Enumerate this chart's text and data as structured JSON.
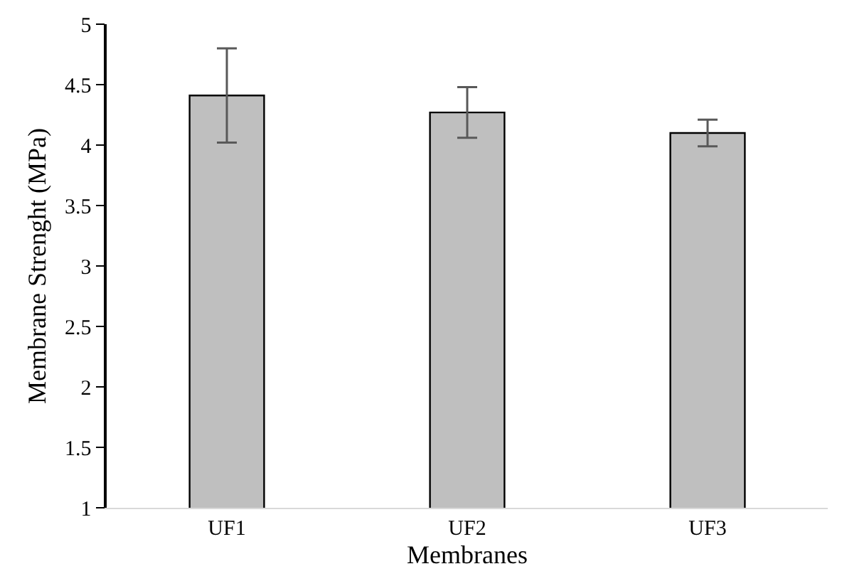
{
  "chart_data": {
    "type": "bar",
    "xlabel": "Membranes",
    "ylabel": "Membrane Strenght (MPa)",
    "categories": [
      "UF1",
      "UF2",
      "UF3"
    ],
    "values": [
      4.41,
      4.27,
      4.1
    ],
    "errors": [
      0.39,
      0.21,
      0.11
    ],
    "color": "#bfbfbf",
    "ylim": [
      1,
      5
    ],
    "yticks": [
      1,
      1.5,
      2,
      2.5,
      3,
      3.5,
      4,
      4.5,
      5
    ]
  }
}
